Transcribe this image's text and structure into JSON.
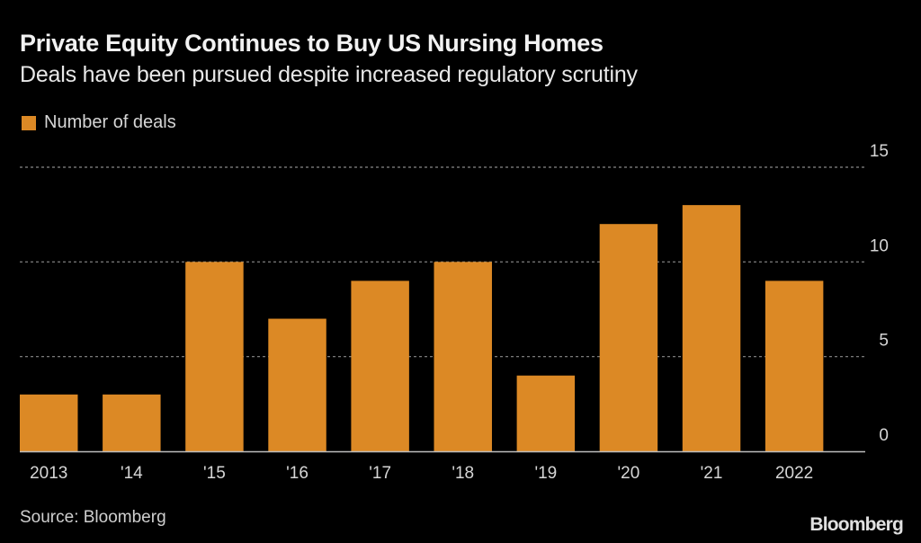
{
  "header": {
    "title": "Private Equity Continues to Buy US Nursing Homes",
    "subtitle": "Deals have been pursued despite increased regulatory scrutiny"
  },
  "footer": {
    "source": "Source: Bloomberg",
    "brand": "Bloomberg"
  },
  "colors": {
    "background": "#000000",
    "bar": "#dc8925",
    "grid": "#8a8a8a",
    "axis": "#bdbdbd",
    "text": "#d6d6d6"
  },
  "chart_data": {
    "type": "bar",
    "title": "Private Equity Continues to Buy US Nursing Homes",
    "subtitle": "Deals have been pursued despite increased regulatory scrutiny",
    "categories": [
      "2013",
      "'14",
      "'15",
      "'16",
      "'17",
      "'18",
      "'19",
      "'20",
      "'21",
      "2022"
    ],
    "series": [
      {
        "name": "Number of deals",
        "values": [
          3,
          3,
          10,
          7,
          9,
          10,
          4,
          12,
          13,
          9
        ]
      }
    ],
    "xlabel": "",
    "ylabel": "",
    "ylim": [
      0,
      15
    ],
    "yticks": [
      0,
      5,
      10,
      15
    ],
    "ytick_labels": [
      "0",
      "5",
      "10",
      "15"
    ],
    "y_axis_side": "right",
    "grid": true,
    "grid_style": "dotted",
    "legend": {
      "position": "top-left",
      "entries": [
        "Number of deals"
      ]
    },
    "source": "Source: Bloomberg"
  }
}
